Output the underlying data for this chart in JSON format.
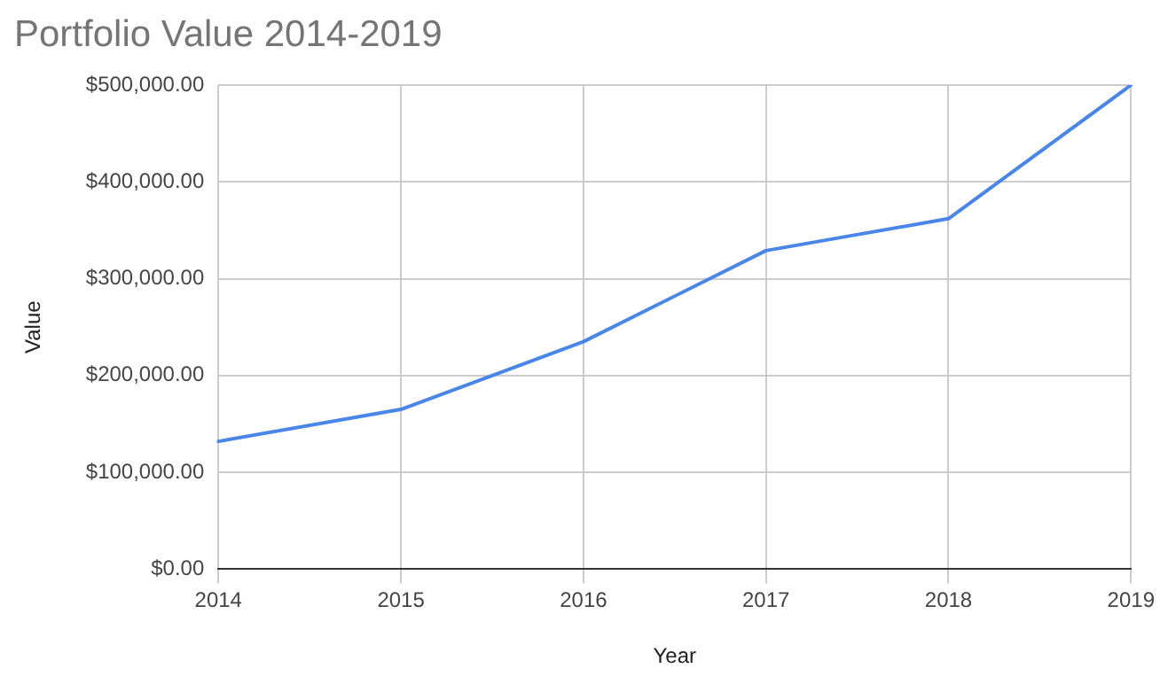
{
  "chart_data": {
    "type": "line",
    "title": "Portfolio Value 2014-2019",
    "xlabel": "Year",
    "ylabel": "Value",
    "categories": [
      "2014",
      "2015",
      "2016",
      "2017",
      "2018",
      "2019"
    ],
    "series": [
      {
        "color": "#4a86e8",
        "values": [
          132000,
          165000,
          235000,
          329000,
          362000,
          500000
        ]
      }
    ],
    "ylim": [
      0,
      500000
    ],
    "yticks": [
      {
        "value": 0,
        "label": "$0.00"
      },
      {
        "value": 100000,
        "label": "$100,000.00"
      },
      {
        "value": 200000,
        "label": "$200,000.00"
      },
      {
        "value": 300000,
        "label": "$300,000.00"
      },
      {
        "value": 400000,
        "label": "$400,000.00"
      },
      {
        "value": 500000,
        "label": "$500,000.00"
      }
    ],
    "grid": true,
    "legend": false,
    "marker": "none",
    "line_style": "solid"
  }
}
